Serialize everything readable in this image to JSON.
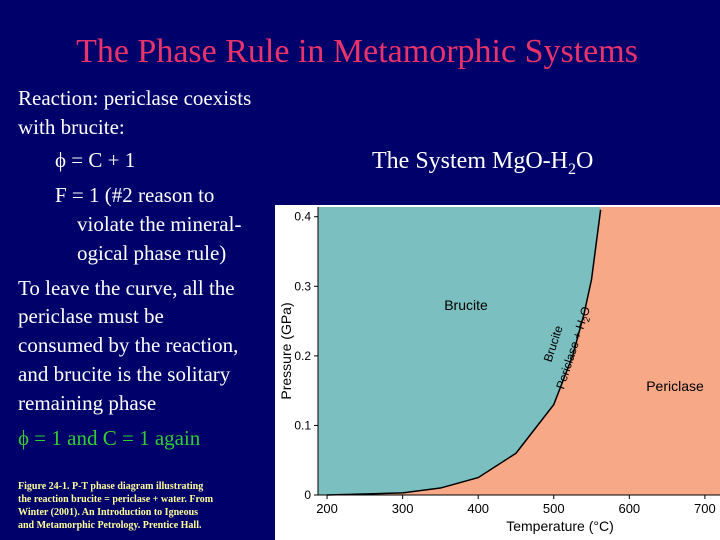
{
  "title": "The Phase Rule in Metamorphic Systems",
  "body": [
    "Reaction: periclase coexists",
    "with brucite:",
    "ϕ = C + 1",
    "F = 1 (#2 reason to",
    "violate the mineral-",
    "ogical phase rule)",
    "To leave the curve, all the",
    "periclase must be",
    "consumed by the reaction,",
    "and brucite is the solitary",
    "remaining phase",
    "ϕ = 1 and C = 1 again"
  ],
  "subtitle": [
    "The System MgO-H",
    "2",
    "O"
  ],
  "caption": [
    "Figure 24-1. P-T phase diagram illustrating",
    "the reaction brucite = periclase + water. From",
    "Winter (2001). An Introduction to Igneous",
    "and Metamorphic Petrology. Prentice Hall."
  ],
  "chart_data": {
    "type": "line",
    "xlabel": "Temperature (°C)",
    "ylabel": "Pressure (GPa)",
    "x": [
      200,
      300,
      350,
      400,
      450,
      500,
      525,
      540,
      550,
      562
    ],
    "values": [
      0,
      0.003,
      0.01,
      0.025,
      0.06,
      0.13,
      0.2,
      0.26,
      0.31,
      0.41
    ],
    "color": "#000000",
    "regions": [
      {
        "name": "Brucite",
        "color": "#7bbfc0"
      },
      {
        "name": "Periclase",
        "color": "#f6a887"
      }
    ],
    "curve_labels": [
      "Brucite",
      "Periclase + H",
      "2",
      "O"
    ],
    "xlim": [
      188,
      720
    ],
    "ylim": [
      0,
      0.414
    ],
    "xticks": [
      200,
      300,
      400,
      500,
      600,
      700
    ],
    "yticks": [
      0,
      0.1,
      0.2,
      0.3,
      0.4
    ]
  }
}
